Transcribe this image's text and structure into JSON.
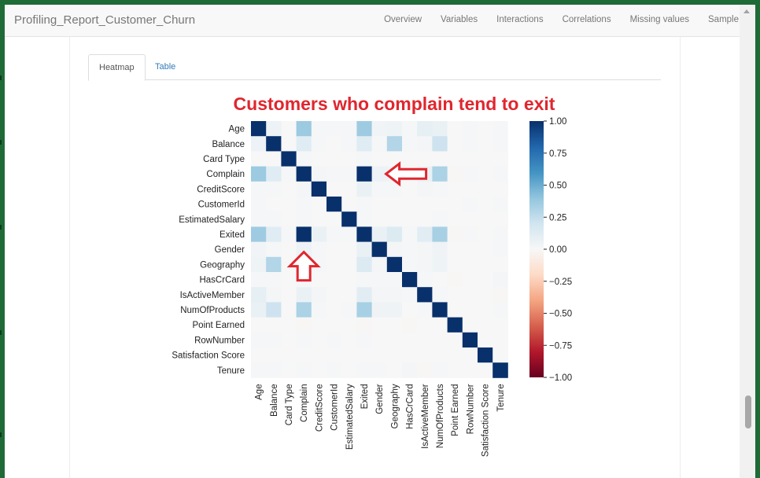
{
  "navbar": {
    "brand": "Profiling_Report_Customer_Churn",
    "links": [
      "Overview",
      "Variables",
      "Interactions",
      "Correlations",
      "Missing values",
      "Sample"
    ]
  },
  "tabs": {
    "heatmap": "Heatmap",
    "table": "Table"
  },
  "annotation": {
    "title": "Customers who complain tend to exit",
    "color": "#e0262e"
  },
  "chart_data": {
    "type": "heatmap",
    "title": "Customers who complain tend to exit",
    "variables": [
      "Age",
      "Balance",
      "Card Type",
      "Complain",
      "CreditScore",
      "CustomerId",
      "EstimatedSalary",
      "Exited",
      "Gender",
      "Geography",
      "HasCrCard",
      "IsActiveMember",
      "NumOfProducts",
      "Point Earned",
      "RowNumber",
      "Satisfaction Score",
      "Tenure"
    ],
    "x_tick_labels": [
      "Age",
      "Balance",
      "Card Type",
      "Complain",
      "CreditScore",
      "CustomerId",
      "EstimatedSalary",
      "Exited",
      "Gender",
      "Geography",
      "HasCrCard",
      "IsActiveMember",
      "NumOfProducts",
      "Point Earned",
      "RowNumber",
      "Satisfaction Score",
      "Tenure"
    ],
    "matrix": [
      [
        1.0,
        0.06,
        0.0,
        0.37,
        0.01,
        0.01,
        0.01,
        0.36,
        0.03,
        0.05,
        0.01,
        0.09,
        0.07,
        0.0,
        0.01,
        0.0,
        0.01
      ],
      [
        0.06,
        1.0,
        0.0,
        0.12,
        0.01,
        0.0,
        0.01,
        0.12,
        0.01,
        0.3,
        0.01,
        0.02,
        0.21,
        0.0,
        0.01,
        0.0,
        0.01
      ],
      [
        0.0,
        0.0,
        1.0,
        0.01,
        0.0,
        0.0,
        0.0,
        0.01,
        0.0,
        0.0,
        0.0,
        0.0,
        0.0,
        0.0,
        0.0,
        0.0,
        0.0
      ],
      [
        0.37,
        0.12,
        0.01,
        1.0,
        0.02,
        0.01,
        0.01,
        1.0,
        0.06,
        0.05,
        0.01,
        0.07,
        0.32,
        -0.01,
        0.01,
        0.0,
        0.01
      ],
      [
        0.01,
        0.01,
        0.0,
        0.02,
        1.0,
        0.0,
        0.0,
        0.07,
        0.01,
        0.01,
        0.0,
        0.02,
        0.01,
        0.0,
        0.0,
        0.0,
        0.0
      ],
      [
        0.01,
        0.0,
        0.0,
        0.01,
        0.0,
        1.0,
        0.0,
        0.01,
        0.0,
        0.0,
        0.0,
        0.0,
        0.0,
        0.0,
        0.01,
        0.0,
        0.01
      ],
      [
        0.01,
        0.01,
        0.0,
        0.01,
        0.0,
        0.0,
        1.0,
        0.01,
        0.0,
        0.0,
        0.0,
        0.0,
        0.01,
        0.0,
        0.0,
        0.0,
        0.0
      ],
      [
        0.36,
        0.12,
        0.01,
        1.0,
        0.07,
        0.01,
        0.01,
        1.0,
        0.07,
        0.14,
        0.01,
        0.11,
        0.33,
        -0.01,
        0.01,
        0.0,
        0.01
      ],
      [
        0.03,
        0.01,
        0.0,
        0.06,
        0.01,
        0.0,
        0.0,
        0.07,
        1.0,
        0.02,
        0.01,
        0.02,
        0.04,
        0.0,
        0.0,
        0.0,
        0.01
      ],
      [
        0.05,
        0.3,
        0.0,
        0.05,
        0.01,
        0.0,
        0.0,
        0.14,
        0.02,
        1.0,
        0.01,
        0.02,
        0.05,
        0.0,
        0.0,
        0.0,
        0.0
      ],
      [
        0.01,
        0.01,
        0.0,
        0.01,
        0.0,
        0.0,
        0.0,
        0.01,
        0.01,
        0.01,
        1.0,
        0.01,
        0.0,
        -0.01,
        0.0,
        0.0,
        0.02
      ],
      [
        0.09,
        0.02,
        0.0,
        0.07,
        0.02,
        0.0,
        0.0,
        0.11,
        0.02,
        0.02,
        0.01,
        1.0,
        0.01,
        0.0,
        0.0,
        0.0,
        -0.01
      ],
      [
        0.07,
        0.21,
        0.0,
        0.32,
        0.01,
        0.0,
        0.01,
        0.33,
        0.04,
        0.05,
        0.0,
        0.01,
        1.0,
        0.0,
        0.0,
        0.0,
        0.01
      ],
      [
        0.0,
        0.0,
        0.0,
        -0.01,
        0.0,
        0.0,
        0.0,
        -0.01,
        0.0,
        0.0,
        -0.01,
        0.0,
        0.0,
        1.0,
        0.0,
        0.0,
        0.0
      ],
      [
        0.01,
        0.01,
        0.0,
        0.01,
        0.0,
        0.01,
        0.0,
        0.01,
        0.0,
        0.0,
        0.0,
        0.0,
        0.0,
        0.0,
        1.0,
        0.0,
        0.0
      ],
      [
        0.0,
        0.0,
        0.0,
        0.0,
        0.0,
        0.0,
        0.0,
        0.0,
        0.0,
        0.0,
        0.0,
        0.0,
        0.0,
        0.0,
        0.0,
        1.0,
        0.0
      ],
      [
        0.01,
        0.01,
        0.0,
        0.01,
        0.0,
        0.01,
        0.0,
        0.01,
        0.01,
        0.0,
        0.02,
        -0.01,
        0.01,
        0.0,
        0.0,
        0.0,
        1.0
      ]
    ],
    "colorbar": {
      "range": [
        -1,
        1
      ],
      "ticks": [
        "1.00",
        "0.75",
        "0.50",
        "0.25",
        "0.00",
        "−0.25",
        "−0.50",
        "−0.75",
        "−1.00"
      ],
      "colors": [
        "#08306b",
        "#2166ac",
        "#4393c3",
        "#92c5de",
        "#d1e5f0",
        "#f7f7f7",
        "#fddbc7",
        "#f4a582",
        "#d6604d",
        "#b2182b",
        "#67001f"
      ]
    },
    "annotations": [
      {
        "type": "arrow",
        "direction": "left",
        "points_to": [
          "Complain",
          "Exited"
        ],
        "color": "#e0262e"
      },
      {
        "type": "arrow",
        "direction": "up",
        "points_to": [
          "Exited",
          "Complain"
        ],
        "color": "#e0262e"
      }
    ]
  }
}
